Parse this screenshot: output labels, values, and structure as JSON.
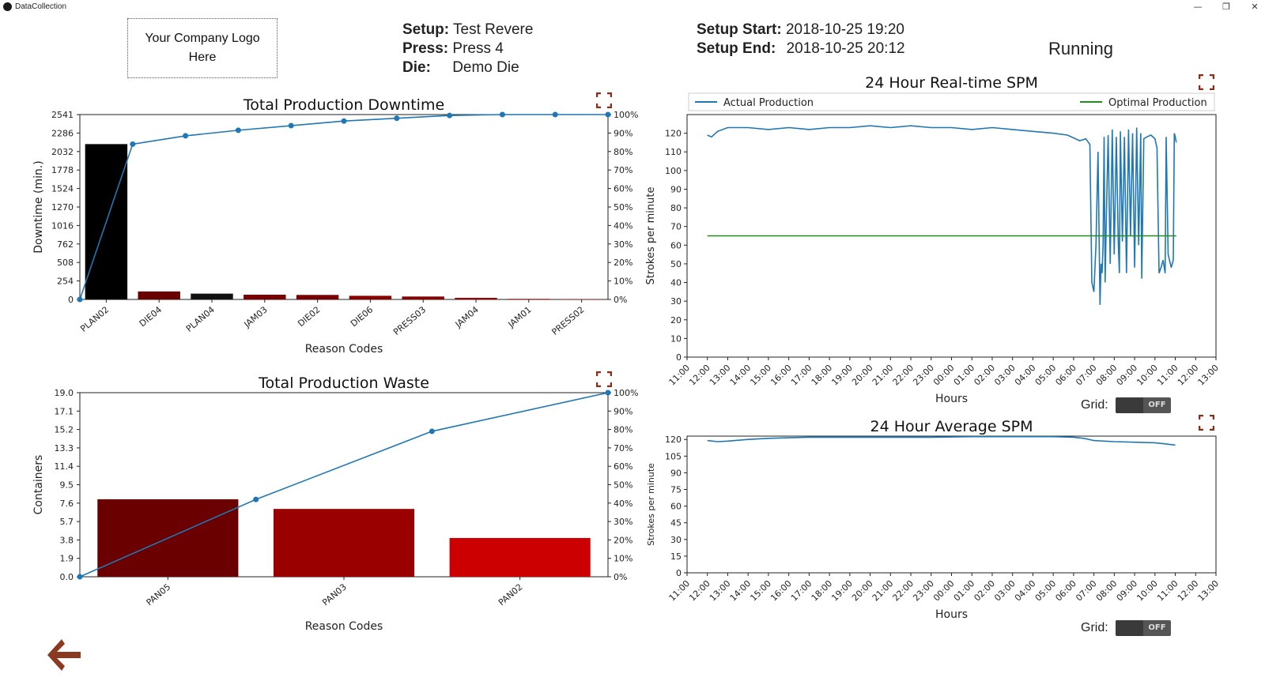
{
  "window": {
    "title": "DataCollection",
    "minimize": "—",
    "restore": "❐",
    "close": "✕"
  },
  "logo": {
    "text": "Your Company Logo Here"
  },
  "setup": {
    "setup_label": "Setup:",
    "setup_value": "Test Revere",
    "press_label": "Press:",
    "press_value": "Press 4",
    "die_label": "Die:",
    "die_value": "Demo Die",
    "start_label": "Setup Start:",
    "start_value": "2018-10-25 19:20",
    "end_label": "Setup End:",
    "end_value": "2018-10-25 20:12",
    "status": "Running"
  },
  "grid_controls": {
    "label": "Grid:",
    "state": "OFF"
  },
  "icons": {
    "fullscreen": "fullscreen-icon",
    "back": "back-arrow-icon"
  },
  "colors": {
    "accent": "#1f77b4",
    "optimal": "#228b22",
    "icon": "#8b2e1a"
  },
  "chart_data": [
    {
      "type": "bar",
      "title": "Total Production Downtime",
      "xlabel": "Reason Codes",
      "ylabel": "Downtime (min.)",
      "ylim": [
        0,
        2541
      ],
      "yticks": [
        "0",
        "254",
        "508",
        "762",
        "1016",
        "1270",
        "1524",
        "1778",
        "2032",
        "2286",
        "2541"
      ],
      "y2ticks": [
        "0%",
        "10%",
        "20%",
        "30%",
        "40%",
        "50%",
        "60%",
        "70%",
        "80%",
        "90%",
        "100%"
      ],
      "categories": [
        "PLAN02",
        "DIE04",
        "PLAN04",
        "JAM03",
        "DIE02",
        "DIE06",
        "PRESS03",
        "JAM04",
        "JAM01",
        "PRESS02"
      ],
      "values": [
        2135,
        110,
        80,
        65,
        62,
        50,
        40,
        22,
        8,
        4
      ],
      "bar_colors": [
        "#000000",
        "#6a0000",
        "#111111",
        "#7a0000",
        "#7a0000",
        "#8a0000",
        "#8a0000",
        "#a00000",
        "#b00000",
        "#c00000"
      ],
      "cumulative_pct": [
        0,
        84,
        88.5,
        91.5,
        94,
        96.5,
        98,
        99.5,
        100,
        100,
        100
      ]
    },
    {
      "type": "bar",
      "title": "Total Production Waste",
      "xlabel": "Reason Codes",
      "ylabel": "Containers",
      "ylim": [
        0,
        19
      ],
      "yticks": [
        "0.0",
        "1.9",
        "3.8",
        "5.7",
        "7.6",
        "9.5",
        "11.4",
        "13.3",
        "15.2",
        "17.1",
        "19.0"
      ],
      "y2ticks": [
        "0%",
        "10%",
        "20%",
        "30%",
        "40%",
        "50%",
        "60%",
        "70%",
        "80%",
        "90%",
        "100%"
      ],
      "categories": [
        "PAN05",
        "PAN03",
        "PAN02"
      ],
      "values": [
        8,
        7,
        4
      ],
      "bar_colors": [
        "#6a0000",
        "#9a0000",
        "#cc0000"
      ],
      "cumulative_pct": [
        0,
        42,
        79,
        100
      ]
    },
    {
      "type": "line",
      "title": "24 Hour Real-time SPM",
      "xlabel": "Hours",
      "ylabel": "Strokes per minute",
      "ylim": [
        0,
        130
      ],
      "yticks": [
        "0",
        "10",
        "20",
        "30",
        "40",
        "50",
        "60",
        "70",
        "80",
        "90",
        "100",
        "110",
        "120"
      ],
      "xticks": [
        "11:00",
        "12:00",
        "13:00",
        "14:00",
        "15:00",
        "16:00",
        "17:00",
        "18:00",
        "19:00",
        "20:00",
        "21:00",
        "22:00",
        "23:00",
        "00:00",
        "01:00",
        "02:00",
        "03:00",
        "04:00",
        "05:00",
        "06:00",
        "07:00",
        "08:00",
        "09:00",
        "10:00",
        "11:00",
        "12:00",
        "13:00"
      ],
      "legend": [
        "Actual Production",
        "Optimal Production"
      ],
      "series": [
        {
          "name": "Actual Production",
          "points": [
            [
              1,
              119
            ],
            [
              1.2,
              118
            ],
            [
              1.5,
              121
            ],
            [
              2,
              123
            ],
            [
              3,
              123
            ],
            [
              4,
              122
            ],
            [
              5,
              123
            ],
            [
              6,
              122
            ],
            [
              7,
              123
            ],
            [
              8,
              123
            ],
            [
              9,
              124
            ],
            [
              10,
              123
            ],
            [
              11,
              124
            ],
            [
              12,
              123
            ],
            [
              13,
              123
            ],
            [
              14,
              122
            ],
            [
              15,
              123
            ],
            [
              16,
              122
            ],
            [
              17,
              121
            ],
            [
              18,
              120
            ],
            [
              18.7,
              119
            ],
            [
              19.3,
              116
            ],
            [
              19.6,
              117
            ],
            [
              19.8,
              114
            ],
            [
              19.9,
              40
            ],
            [
              20.0,
              35
            ],
            [
              20.1,
              60
            ],
            [
              20.2,
              110
            ],
            [
              20.3,
              28
            ],
            [
              20.35,
              50
            ],
            [
              20.4,
              45
            ],
            [
              20.45,
              60
            ],
            [
              20.5,
              118
            ],
            [
              20.55,
              40
            ],
            [
              20.6,
              70
            ],
            [
              20.7,
              119
            ],
            [
              20.8,
              50
            ],
            [
              20.9,
              122
            ],
            [
              21.0,
              55
            ],
            [
              21.1,
              118
            ],
            [
              21.2,
              60
            ],
            [
              21.25,
              45
            ],
            [
              21.3,
              121
            ],
            [
              21.4,
              62
            ],
            [
              21.5,
              118
            ],
            [
              21.6,
              45
            ],
            [
              21.7,
              122
            ],
            [
              21.8,
              65
            ],
            [
              21.9,
              120
            ],
            [
              22.0,
              48
            ],
            [
              22.1,
              123
            ],
            [
              22.2,
              60
            ],
            [
              22.3,
              120
            ],
            [
              22.35,
              42
            ],
            [
              22.45,
              117
            ],
            [
              22.6,
              118
            ],
            [
              22.8,
              119
            ],
            [
              23.0,
              117
            ],
            [
              23.1,
              112
            ],
            [
              23.2,
              45
            ],
            [
              23.3,
              48
            ],
            [
              23.4,
              52
            ],
            [
              23.5,
              45
            ],
            [
              23.55,
              118
            ],
            [
              23.65,
              55
            ],
            [
              23.8,
              48
            ],
            [
              23.9,
              52
            ],
            [
              23.95,
              120
            ],
            [
              24.0,
              118
            ],
            [
              24.05,
              115
            ]
          ]
        },
        {
          "name": "Optimal Production",
          "points": [
            [
              1,
              65
            ],
            [
              24.05,
              65
            ]
          ]
        }
      ]
    },
    {
      "type": "line",
      "title": "24 Hour Average SPM",
      "xlabel": "Hours",
      "ylabel": "Strokes per minute",
      "ylim": [
        0,
        123
      ],
      "yticks": [
        "0",
        "15",
        "30",
        "45",
        "60",
        "75",
        "90",
        "105",
        "120"
      ],
      "xticks": [
        "11:00",
        "12:00",
        "13:00",
        "14:00",
        "15:00",
        "16:00",
        "17:00",
        "18:00",
        "19:00",
        "20:00",
        "21:00",
        "22:00",
        "23:00",
        "00:00",
        "01:00",
        "02:00",
        "03:00",
        "04:00",
        "05:00",
        "06:00",
        "07:00",
        "08:00",
        "09:00",
        "10:00",
        "11:00",
        "12:00",
        "13:00"
      ],
      "series": [
        {
          "name": "Average SPM",
          "points": [
            [
              1,
              119
            ],
            [
              1.5,
              118
            ],
            [
              2,
              118.5
            ],
            [
              3,
              120
            ],
            [
              4,
              121
            ],
            [
              5,
              121.5
            ],
            [
              6,
              122
            ],
            [
              8,
              122
            ],
            [
              10,
              122
            ],
            [
              12,
              122
            ],
            [
              14,
              122.5
            ],
            [
              16,
              122.5
            ],
            [
              18,
              122.5
            ],
            [
              19,
              122
            ],
            [
              19.5,
              121
            ],
            [
              20,
              119
            ],
            [
              21,
              118
            ],
            [
              22,
              117.5
            ],
            [
              23,
              117
            ],
            [
              23.5,
              116
            ],
            [
              24,
              115
            ]
          ]
        }
      ]
    }
  ]
}
